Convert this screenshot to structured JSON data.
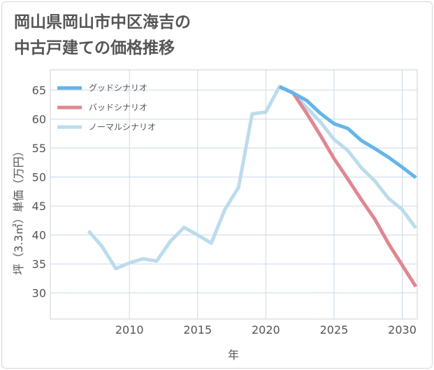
{
  "title_lines": [
    "岡山県岡山市中区海吉の",
    "中古戸建ての価格推移"
  ],
  "colors": {
    "good": "#64b5ea",
    "bad": "#e08790",
    "normal": "#bcdcec",
    "grid": "#c9d9e6",
    "text": "#555555"
  },
  "chart_data": {
    "type": "line",
    "title": "岡山県岡山市中区海吉の中古戸建ての価格推移",
    "xlabel": "年",
    "ylabel": "坪（3.3㎡）単価（万円）",
    "xlim": [
      2004.2,
      2031.1
    ],
    "ylim": [
      25.5,
      68.5
    ],
    "x_ticks": [
      2010,
      2015,
      2020,
      2025,
      2030
    ],
    "y_ticks": [
      30,
      35,
      40,
      45,
      50,
      55,
      60,
      65
    ],
    "grid": true,
    "legend_position": "top-left",
    "series": [
      {
        "name": "グッドシナリオ",
        "color_key": "good",
        "points": [
          [
            2021,
            65.6
          ],
          [
            2022,
            64.5
          ],
          [
            2023,
            63.2
          ],
          [
            2024,
            61.0
          ],
          [
            2025,
            59.2
          ],
          [
            2026,
            58.4
          ],
          [
            2027,
            56.3
          ],
          [
            2028,
            54.9
          ],
          [
            2029,
            53.4
          ],
          [
            2030,
            51.7
          ],
          [
            2031,
            49.9
          ]
        ]
      },
      {
        "name": "バッドシナリオ",
        "color_key": "bad",
        "points": [
          [
            2021,
            65.6
          ],
          [
            2022,
            64.5
          ],
          [
            2023,
            61.0
          ],
          [
            2024,
            57.2
          ],
          [
            2025,
            53.2
          ],
          [
            2026,
            49.7
          ],
          [
            2027,
            46.1
          ],
          [
            2028,
            42.7
          ],
          [
            2029,
            38.5
          ],
          [
            2030,
            34.8
          ],
          [
            2031,
            31.1
          ]
        ]
      },
      {
        "name": "ノーマルシナリオ",
        "color_key": "normal",
        "points": [
          [
            2007,
            40.7
          ],
          [
            2008,
            38.0
          ],
          [
            2009,
            34.2
          ],
          [
            2010,
            35.2
          ],
          [
            2011,
            35.9
          ],
          [
            2012,
            35.5
          ],
          [
            2013,
            38.9
          ],
          [
            2014,
            41.3
          ],
          [
            2015,
            40.0
          ],
          [
            2016,
            38.6
          ],
          [
            2017,
            44.4
          ],
          [
            2018,
            48.2
          ],
          [
            2019,
            60.9
          ],
          [
            2020,
            61.2
          ],
          [
            2021,
            65.6
          ],
          [
            2022,
            64.5
          ],
          [
            2023,
            62.0
          ],
          [
            2024,
            59.5
          ],
          [
            2025,
            56.5
          ],
          [
            2026,
            54.6
          ],
          [
            2027,
            51.6
          ],
          [
            2028,
            49.3
          ],
          [
            2029,
            46.3
          ],
          [
            2030,
            44.4
          ],
          [
            2031,
            41.2
          ]
        ]
      }
    ]
  }
}
